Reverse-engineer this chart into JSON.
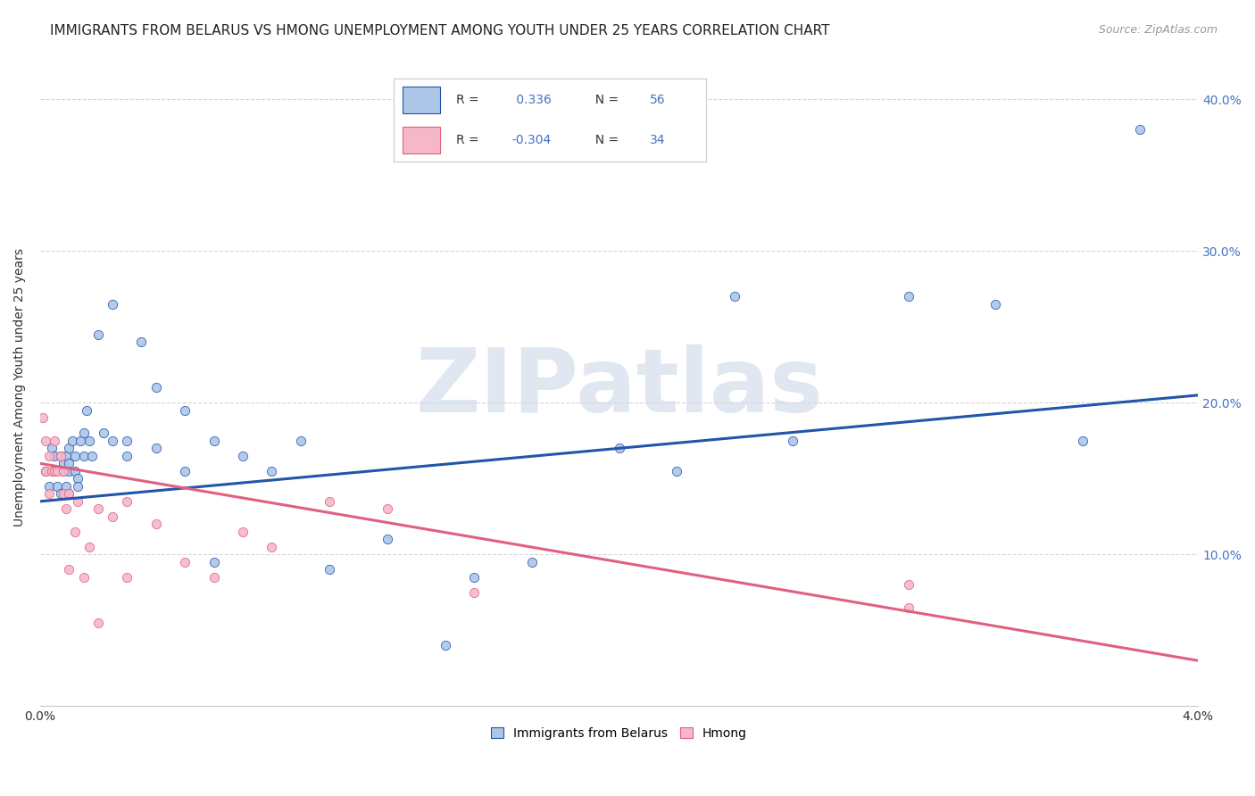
{
  "title": "IMMIGRANTS FROM BELARUS VS HMONG UNEMPLOYMENT AMONG YOUTH UNDER 25 YEARS CORRELATION CHART",
  "source": "Source: ZipAtlas.com",
  "ylabel": "Unemployment Among Youth under 25 years",
  "legend_label1": "Immigrants from Belarus",
  "legend_label2": "Hmong",
  "r1": 0.336,
  "n1": 56,
  "r2": -0.304,
  "n2": 34,
  "blue_color": "#adc6e8",
  "pink_color": "#f5b8c8",
  "blue_line_color": "#2255aa",
  "pink_line_color": "#e06080",
  "watermark": "ZIPatlas",
  "xlim": [
    0.0,
    0.04
  ],
  "ylim": [
    0.0,
    0.42
  ],
  "blue_scatter_x": [
    0.0002,
    0.0003,
    0.0004,
    0.0005,
    0.0005,
    0.0006,
    0.0007,
    0.0007,
    0.0008,
    0.0008,
    0.0009,
    0.0009,
    0.001,
    0.001,
    0.001,
    0.001,
    0.0011,
    0.0012,
    0.0012,
    0.0013,
    0.0013,
    0.0014,
    0.0015,
    0.0015,
    0.0016,
    0.0017,
    0.0018,
    0.002,
    0.0022,
    0.0025,
    0.0025,
    0.003,
    0.003,
    0.0035,
    0.004,
    0.004,
    0.005,
    0.005,
    0.006,
    0.006,
    0.007,
    0.008,
    0.009,
    0.01,
    0.012,
    0.014,
    0.015,
    0.017,
    0.02,
    0.022,
    0.024,
    0.026,
    0.03,
    0.033,
    0.036,
    0.038
  ],
  "blue_scatter_y": [
    0.155,
    0.145,
    0.17,
    0.165,
    0.155,
    0.145,
    0.165,
    0.14,
    0.16,
    0.155,
    0.165,
    0.145,
    0.17,
    0.16,
    0.155,
    0.14,
    0.175,
    0.165,
    0.155,
    0.15,
    0.145,
    0.175,
    0.18,
    0.165,
    0.195,
    0.175,
    0.165,
    0.245,
    0.18,
    0.265,
    0.175,
    0.175,
    0.165,
    0.24,
    0.21,
    0.17,
    0.195,
    0.155,
    0.175,
    0.095,
    0.165,
    0.155,
    0.175,
    0.09,
    0.11,
    0.04,
    0.085,
    0.095,
    0.17,
    0.155,
    0.27,
    0.175,
    0.27,
    0.265,
    0.175,
    0.38
  ],
  "pink_scatter_x": [
    0.0001,
    0.0002,
    0.0002,
    0.0003,
    0.0003,
    0.0004,
    0.0005,
    0.0005,
    0.0006,
    0.0007,
    0.0008,
    0.0008,
    0.0009,
    0.001,
    0.001,
    0.0012,
    0.0013,
    0.0015,
    0.0017,
    0.002,
    0.002,
    0.0025,
    0.003,
    0.003,
    0.004,
    0.005,
    0.006,
    0.007,
    0.008,
    0.01,
    0.012,
    0.015,
    0.03,
    0.03
  ],
  "pink_scatter_y": [
    0.19,
    0.175,
    0.155,
    0.165,
    0.14,
    0.155,
    0.175,
    0.155,
    0.155,
    0.165,
    0.155,
    0.14,
    0.13,
    0.14,
    0.09,
    0.115,
    0.135,
    0.085,
    0.105,
    0.13,
    0.055,
    0.125,
    0.135,
    0.085,
    0.12,
    0.095,
    0.085,
    0.115,
    0.105,
    0.135,
    0.13,
    0.075,
    0.08,
    0.065
  ],
  "blue_trend_x": [
    0.0,
    0.04
  ],
  "blue_trend_y": [
    0.135,
    0.205
  ],
  "pink_trend_x": [
    0.0,
    0.04
  ],
  "pink_trend_y": [
    0.16,
    0.03
  ],
  "yticks": [
    0.0,
    0.1,
    0.2,
    0.3,
    0.4
  ],
  "ytick_labels": [
    "",
    "10.0%",
    "20.0%",
    "30.0%",
    "40.0%"
  ],
  "xticks": [
    0.0,
    0.04
  ],
  "xtick_labels": [
    "0.0%",
    "4.0%"
  ],
  "grid_color": "#cccccc",
  "background_color": "#ffffff",
  "title_fontsize": 11,
  "source_fontsize": 9,
  "axis_label_color": "#4472c4",
  "watermark_color": "#ccd8e8",
  "watermark_fontsize": 72
}
